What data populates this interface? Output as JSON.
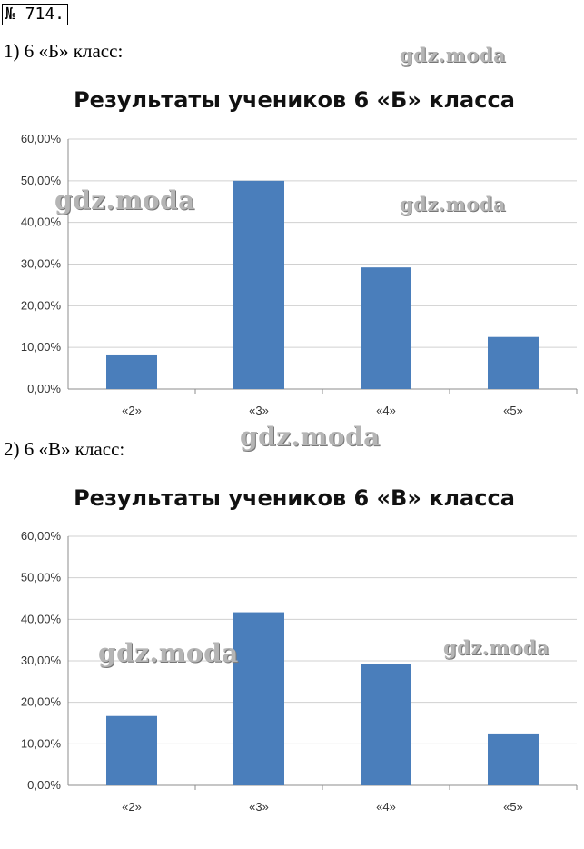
{
  "problem_number": "№ 714.",
  "sections": [
    {
      "label": "1) 6 «Б» класс:"
    },
    {
      "label": "2) 6 «В» класс:"
    }
  ],
  "watermark": {
    "text": "gdz.moda",
    "color": "#b5b5b5"
  },
  "chart_data": [
    {
      "type": "bar",
      "title": "Результаты учеников 6 «Б» класса",
      "categories": [
        "«2»",
        "«3»",
        "«4»",
        "«5»"
      ],
      "values": [
        8.3,
        50.0,
        29.2,
        12.5
      ],
      "yticks": [
        "0,00%",
        "10,00%",
        "20,00%",
        "30,00%",
        "40,00%",
        "50,00%",
        "60,00%"
      ],
      "ylim": [
        0,
        60
      ],
      "unit": "%",
      "grid": true,
      "bar_color": "#4a7ebb"
    },
    {
      "type": "bar",
      "title": "Результаты учеников 6 «В» класса",
      "categories": [
        "«2»",
        "«3»",
        "«4»",
        "«5»"
      ],
      "values": [
        16.7,
        41.7,
        29.2,
        12.5
      ],
      "yticks": [
        "0,00%",
        "10,00%",
        "20,00%",
        "30,00%",
        "40,00%",
        "50,00%",
        "60,00%"
      ],
      "ylim": [
        0,
        60
      ],
      "unit": "%",
      "grid": true,
      "bar_color": "#4a7ebb"
    }
  ]
}
